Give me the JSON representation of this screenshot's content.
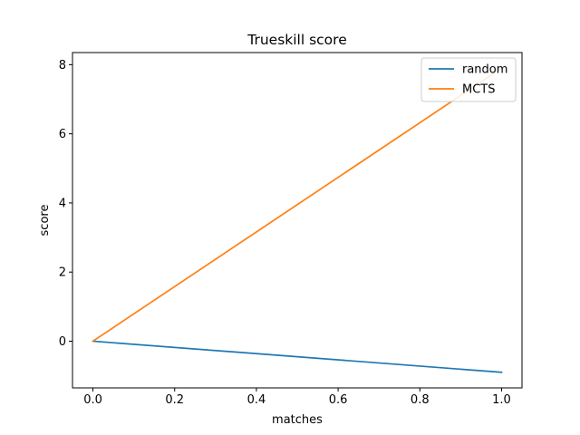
{
  "chart_data": {
    "type": "line",
    "title": "Trueskill score",
    "xlabel": "matches",
    "ylabel": "score",
    "xlim": [
      -0.05,
      1.05
    ],
    "ylim": [
      -1.35,
      8.35
    ],
    "xticks": [
      "0.0",
      "0.2",
      "0.4",
      "0.6",
      "0.8",
      "1.0"
    ],
    "yticks": [
      "0",
      "2",
      "4",
      "6",
      "8"
    ],
    "grid": false,
    "legend_position": "top-right",
    "series": [
      {
        "name": "random",
        "color": "#1f77b4",
        "x": [
          0.0,
          1.0
        ],
        "y": [
          0.0,
          -0.9
        ]
      },
      {
        "name": "MCTS",
        "color": "#ff7f0e",
        "x": [
          0.0,
          1.0
        ],
        "y": [
          0.0,
          7.9
        ]
      }
    ]
  }
}
